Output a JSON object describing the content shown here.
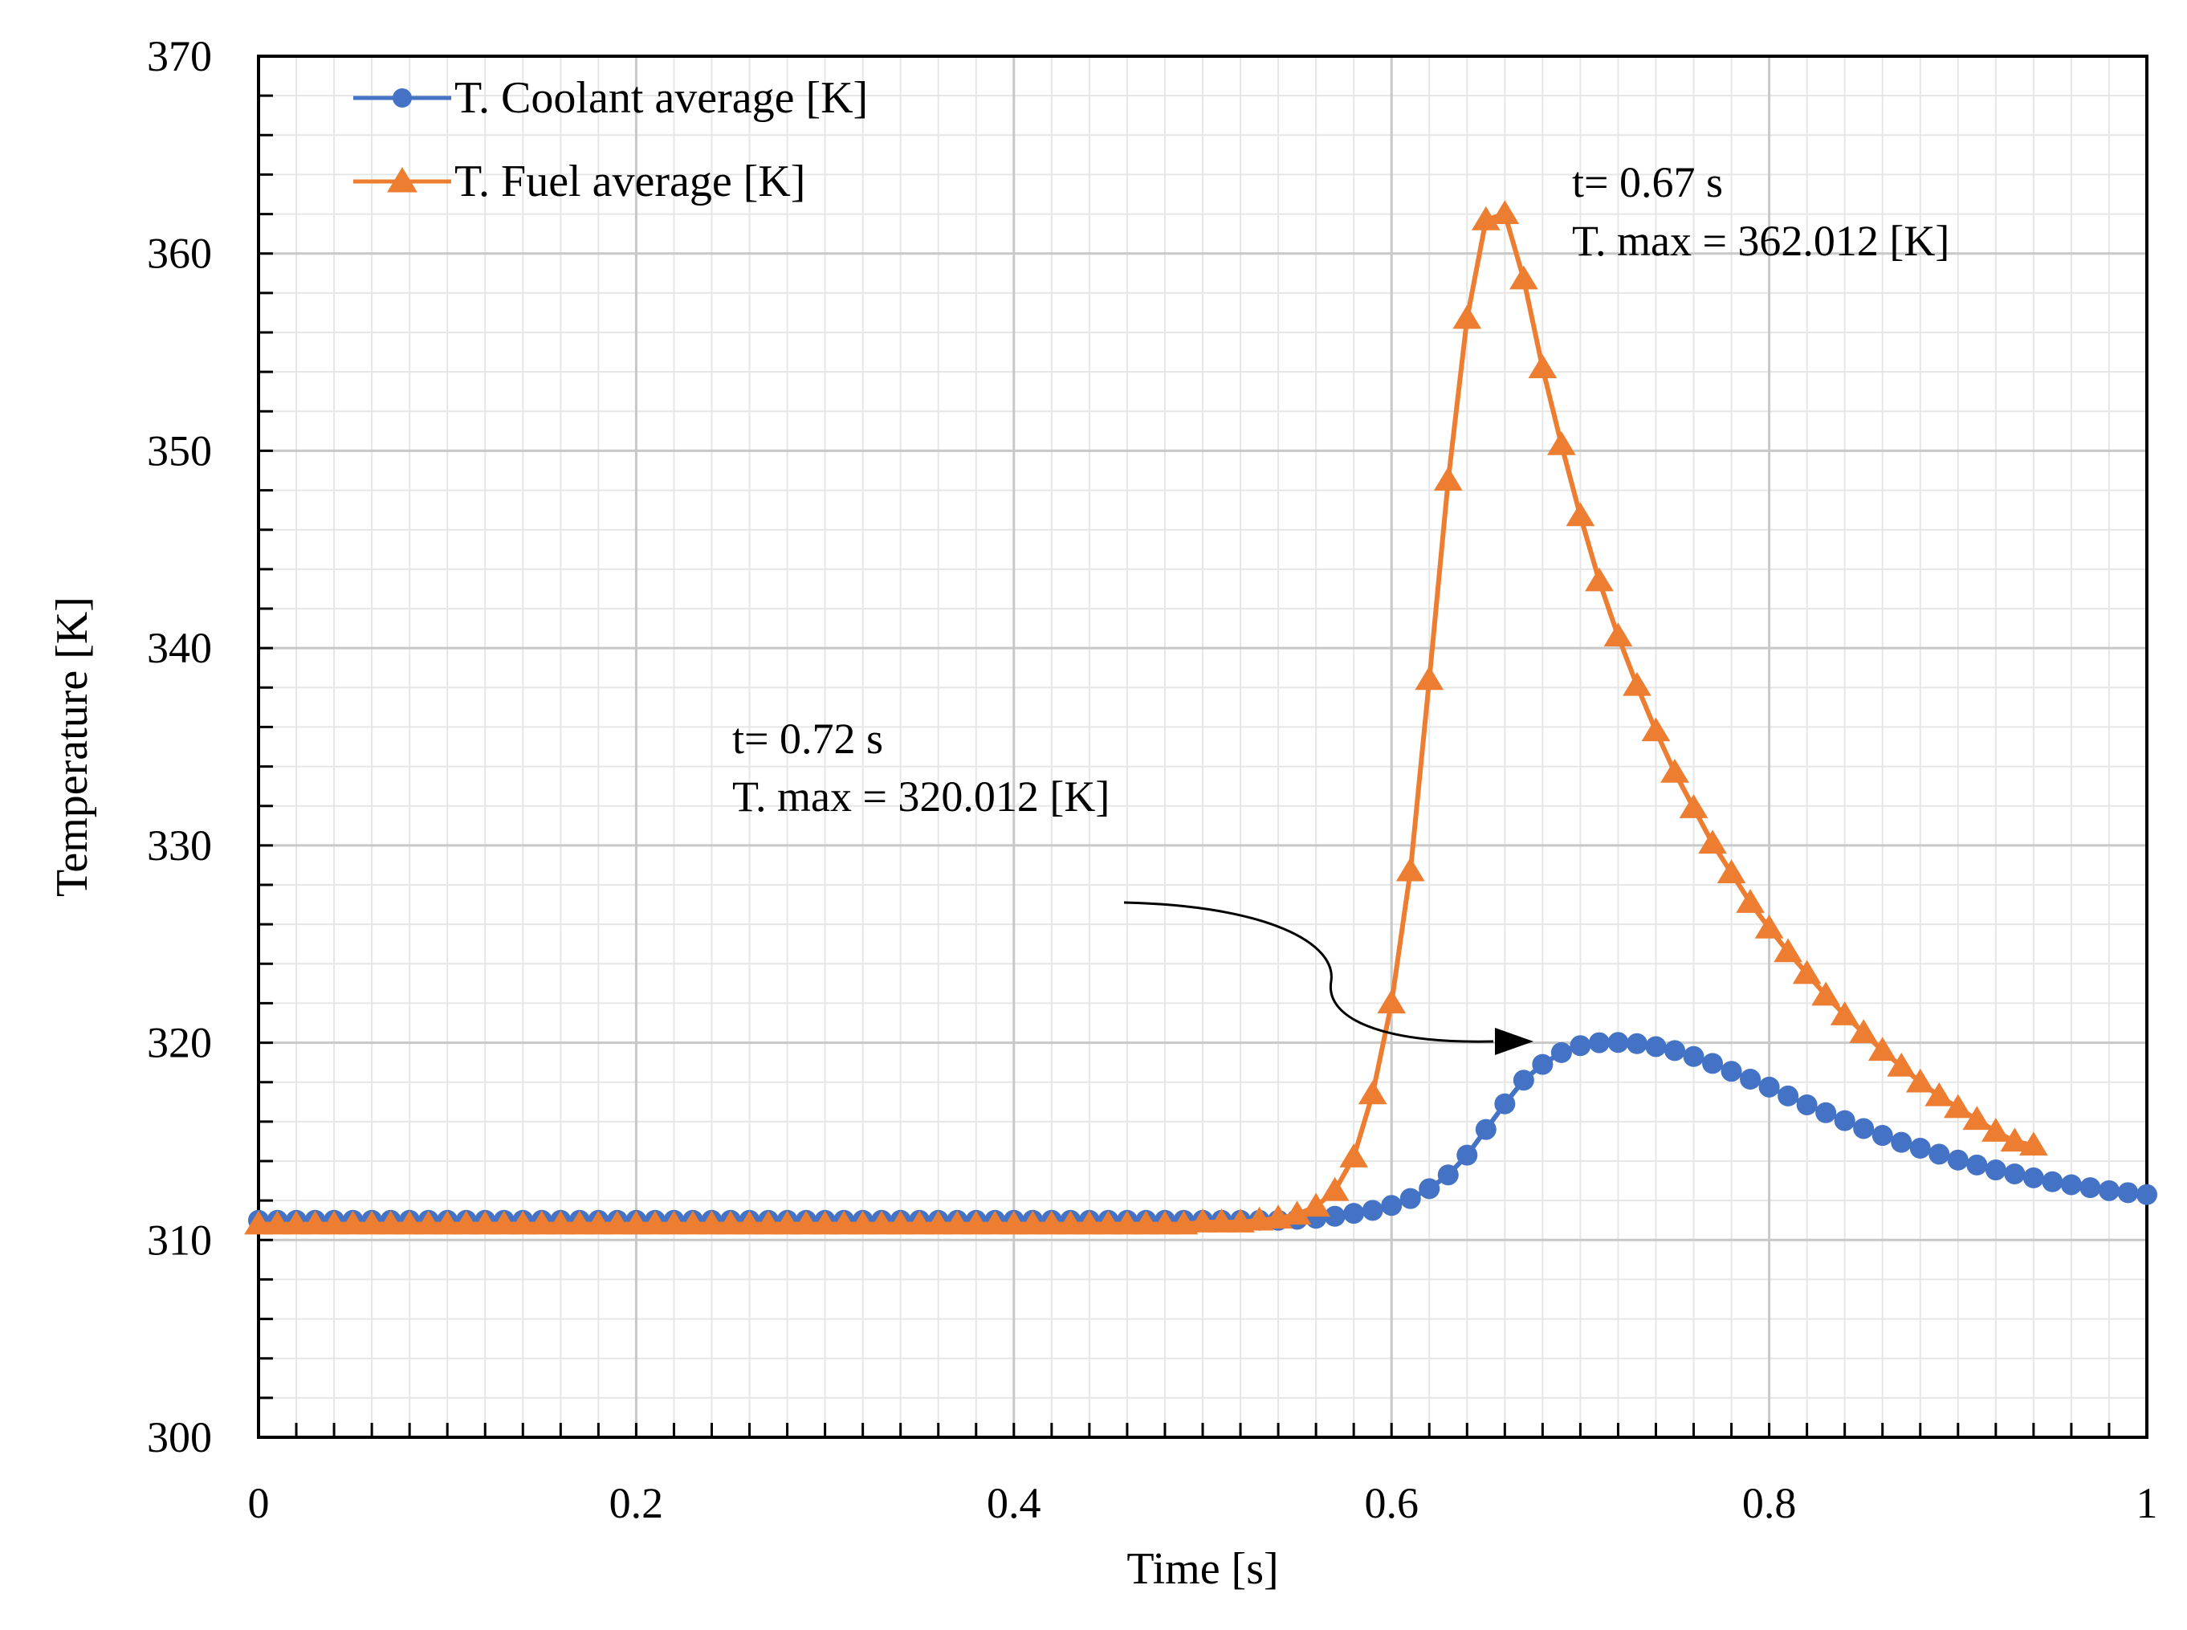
{
  "chart_data": {
    "type": "line",
    "title": "",
    "xlabel": "Time [s]",
    "ylabel": "Temperature [K]",
    "xlim": [
      0,
      1
    ],
    "ylim": [
      300,
      370
    ],
    "x_ticks": [
      0,
      0.2,
      0.4,
      0.6,
      0.8,
      1
    ],
    "x_tick_labels": [
      "0",
      "0.2",
      "0.4",
      "0.6",
      "0.8",
      "1"
    ],
    "y_ticks": [
      300,
      310,
      320,
      330,
      340,
      350,
      360,
      370
    ],
    "y_tick_labels": [
      "300",
      "310",
      "320",
      "330",
      "340",
      "350",
      "360",
      "370"
    ],
    "grid": true,
    "legend_position": "top-left",
    "series": [
      {
        "name": "T. Coolant average  [K]",
        "color": "#4472C4",
        "marker": "circle",
        "start": 0,
        "step": 0.01,
        "values": [
          311,
          311,
          311,
          311,
          311,
          311,
          311,
          311,
          311,
          311,
          311,
          311,
          311,
          311,
          311,
          311,
          311,
          311,
          311,
          311,
          311,
          311,
          311,
          311,
          311,
          311,
          311,
          311,
          311,
          311,
          311,
          311,
          311,
          311,
          311,
          311,
          311,
          311,
          311,
          311,
          311,
          311,
          311,
          311,
          311,
          311,
          311,
          311,
          311,
          311,
          311,
          311,
          311,
          311,
          311,
          311.05,
          311.1,
          311.2,
          311.35,
          311.5,
          311.75,
          312.1,
          312.6,
          313.3,
          314.3,
          315.6,
          316.9,
          318.1,
          318.9,
          319.5,
          319.85,
          320.0,
          320.012,
          319.95,
          319.8,
          319.6,
          319.3,
          318.95,
          318.55,
          318.15,
          317.75,
          317.3,
          316.85,
          316.45,
          316.05,
          315.65,
          315.3,
          314.95,
          314.65,
          314.35,
          314.05,
          313.8,
          313.55,
          313.35,
          313.15,
          312.95,
          312.8,
          312.65,
          312.5,
          312.4,
          312.3
        ]
      },
      {
        "name": "T. Fuel average [K]",
        "color": "#ED7D31",
        "marker": "triangle",
        "start": 0,
        "step": 0.01,
        "values": [
          310.8,
          310.8,
          310.8,
          310.8,
          310.8,
          310.8,
          310.8,
          310.8,
          310.8,
          310.8,
          310.8,
          310.8,
          310.8,
          310.8,
          310.8,
          310.8,
          310.8,
          310.8,
          310.8,
          310.8,
          310.8,
          310.8,
          310.8,
          310.8,
          310.8,
          310.8,
          310.8,
          310.8,
          310.8,
          310.8,
          310.8,
          310.8,
          310.8,
          310.8,
          310.8,
          310.8,
          310.8,
          310.8,
          310.8,
          310.8,
          310.8,
          310.8,
          310.8,
          310.8,
          310.8,
          310.8,
          310.8,
          310.8,
          310.8,
          310.8,
          310.9,
          310.9,
          310.9,
          311.0,
          311.1,
          311.3,
          311.7,
          312.5,
          314.2,
          317.4,
          322.0,
          328.7,
          338.4,
          348.5,
          356.7,
          361.7,
          362.012,
          358.7,
          354.2,
          350.3,
          346.7,
          343.4,
          340.6,
          338.1,
          335.8,
          333.7,
          331.9,
          330.1,
          328.6,
          327.1,
          325.8,
          324.6,
          323.5,
          322.4,
          321.4,
          320.5,
          319.6,
          318.8,
          318.0,
          317.3,
          316.7,
          316.1,
          315.5,
          315.0,
          314.8
        ]
      }
    ],
    "annotations": [
      {
        "line1": "t= 0.67 s",
        "line2": "T. max = 362.012  [K]"
      },
      {
        "line1": "t= 0.72 s",
        "line2": "T. max = 320.012  [K]"
      }
    ]
  }
}
